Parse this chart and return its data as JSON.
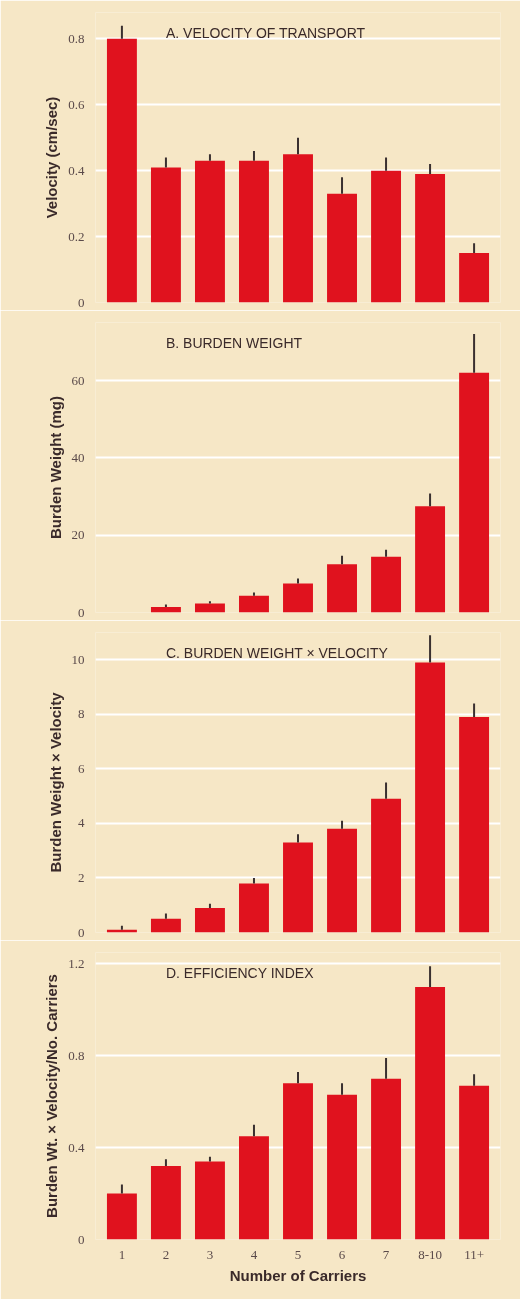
{
  "chart_data": [
    {
      "type": "bar",
      "title": "A. VELOCITY OF TRANSPORT",
      "ylabel": "Velocity (cm/sec)",
      "categories": [
        null,
        null,
        null,
        null,
        null,
        null,
        null,
        null,
        null
      ],
      "color": "#e0121e",
      "values": [
        0.8,
        0.41,
        0.43,
        0.43,
        0.45,
        0.33,
        0.4,
        0.39,
        0.15
      ],
      "errors": [
        [
          0.8,
          0.84
        ],
        [
          0.41,
          0.44
        ],
        [
          0.43,
          0.45
        ],
        [
          0.43,
          0.46
        ],
        [
          0.45,
          0.5
        ],
        [
          0.33,
          0.38
        ],
        [
          0.4,
          0.44
        ],
        [
          0.39,
          0.42
        ],
        [
          0.15,
          0.18
        ]
      ],
      "ylim": [
        0,
        0.88
      ],
      "yticks": [
        0,
        0.2,
        0.4,
        0.6,
        0.8
      ],
      "grid": "y",
      "tick_labels": "y"
    },
    {
      "type": "bar",
      "title": "B. BURDEN WEIGHT",
      "ylabel": "Burden Weight (mg)",
      "categories": [
        null,
        null,
        null,
        null,
        null,
        null,
        null,
        null,
        null
      ],
      "color": "#e0121e",
      "values": [
        null,
        1.4,
        2.3,
        4.3,
        7.5,
        12.5,
        14.4,
        27.5,
        62
      ],
      "errors": [
        null,
        [
          1.4,
          2.1
        ],
        [
          2.3,
          2.9
        ],
        [
          4.3,
          5.2
        ],
        [
          7.5,
          8.8
        ],
        [
          12.5,
          14.7
        ],
        [
          14.4,
          16.2
        ],
        [
          27.5,
          30.8
        ],
        [
          62,
          72
        ]
      ],
      "ylim": [
        0,
        75
      ],
      "yticks": [
        0,
        20,
        40,
        60
      ],
      "grid": "y",
      "tick_labels": "y"
    },
    {
      "type": "bar",
      "title": "C. BURDEN WEIGHT × VELOCITY",
      "ylabel": "Burden Weight × Velocity",
      "categories": [
        null,
        null,
        null,
        null,
        null,
        null,
        null,
        null,
        null
      ],
      "color": "#e0121e",
      "values": [
        0.1,
        0.5,
        0.9,
        1.8,
        3.3,
        3.8,
        4.9,
        9.9,
        7.9
      ],
      "errors": [
        [
          0.1,
          0.25
        ],
        [
          0.5,
          0.7
        ],
        [
          0.9,
          1.05
        ],
        [
          1.8,
          2.0
        ],
        [
          3.3,
          3.6
        ],
        [
          3.8,
          4.1
        ],
        [
          4.9,
          5.5
        ],
        [
          9.9,
          10.9
        ],
        [
          7.9,
          8.4
        ]
      ],
      "ylim": [
        0,
        11
      ],
      "yticks": [
        0,
        2,
        4,
        6,
        8,
        10
      ],
      "grid": "y",
      "tick_labels": "y"
    },
    {
      "type": "bar",
      "title": "D. EFFICIENCY INDEX",
      "ylabel": "Burden Wt. × Velocity/No. Carriers",
      "xlabel": "Number of Carriers",
      "categories": [
        "1",
        "2",
        "3",
        "4",
        "5",
        "6",
        "7",
        "8-10",
        "11+"
      ],
      "color": "#e0121e",
      "values": [
        0.2,
        0.32,
        0.34,
        0.45,
        0.68,
        0.63,
        0.7,
        1.1,
        0.67
      ],
      "errors": [
        [
          0.2,
          0.24
        ],
        [
          0.32,
          0.35
        ],
        [
          0.34,
          0.36
        ],
        [
          0.45,
          0.5
        ],
        [
          0.68,
          0.73
        ],
        [
          0.63,
          0.68
        ],
        [
          0.7,
          0.79
        ],
        [
          1.1,
          1.19
        ],
        [
          0.67,
          0.72
        ]
      ],
      "ylim": [
        0,
        1.25
      ],
      "yticks": [
        0,
        0.4,
        0.8,
        1.2
      ],
      "grid": "y"
    }
  ]
}
